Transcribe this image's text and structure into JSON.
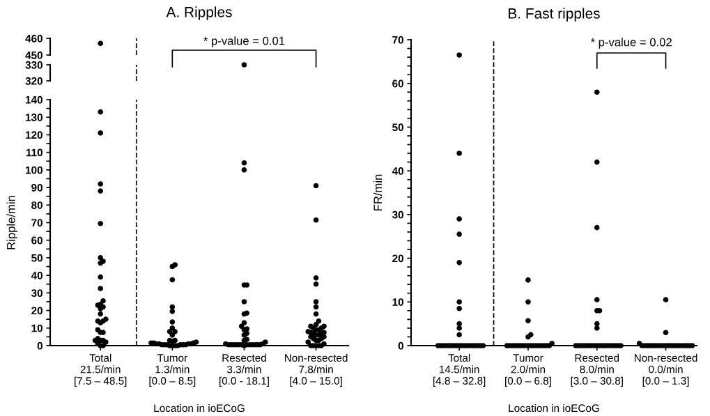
{
  "chart_data": [
    {
      "type": "scatter",
      "title": "A. Ripples",
      "categories": [
        "Total\n21.5/min\n[7.5 – 48.5]",
        "Tumor\n1.3/min\n[0.0 – 8.5]",
        "Resected\n3.3/min\n[0.0 - 18.1]",
        "Non-resected\n7.8/min\n[4.0 – 15.0]"
      ],
      "ylim": [
        450,
        460
      ],
      "yticks": [
        450,
        460
      ],
      "tick_labels": "y",
      "marker": "circle",
      "annotations": [
        "* p-value = 0.01"
      ],
      "series": [
        {
          "color": "#000000",
          "x": [
            "Total\n21.5/min\n[7.5 – 48.5]"
          ],
          "values": [
            457
          ]
        }
      ]
    },
    {
      "type": "scatter",
      "categories": [
        "Total\n21.5/min\n[7.5 – 48.5]",
        "Tumor\n1.3/min\n[0.0 – 8.5]",
        "Resected\n3.3/min\n[0.0 - 18.1]",
        "Non-resected\n7.8/min\n[4.0 – 15.0]"
      ],
      "ylim": [
        320,
        330
      ],
      "yticks": [
        320,
        330
      ],
      "tick_labels": "y",
      "marker": "circle",
      "series": [
        {
          "color": "#000000",
          "x": [
            "Resected\n3.3/min\n[0.0 - 18.1]"
          ],
          "values": [
            330
          ]
        }
      ]
    },
    {
      "type": "scatter",
      "ylabel": "Ripple/min",
      "xlabel": "Location in ioECoG",
      "categories": [
        "Total\n21.5/min\n[7.5 – 48.5]",
        "Tumor\n1.3/min\n[0.0 – 8.5]",
        "Resected\n3.3/min\n[0.0 - 18.1]",
        "Non-resected\n7.8/min\n[4.0 – 15.0]"
      ],
      "ylim": [
        0,
        140
      ],
      "yticks": [
        0,
        {
          "value": 5,
          "label": null
        },
        10,
        {
          "value": 15,
          "label": null
        },
        20,
        {
          "value": 25,
          "label": null
        },
        30,
        {
          "value": 35,
          "label": null
        },
        40,
        {
          "value": 45,
          "label": null
        },
        50,
        {
          "value": 55,
          "label": null
        },
        60,
        {
          "value": 65,
          "label": null
        },
        70,
        {
          "value": 75,
          "label": null
        },
        80,
        {
          "value": 85,
          "label": null
        },
        90,
        {
          "value": 95,
          "label": null
        },
        100,
        {
          "value": 105,
          "label": null
        },
        110,
        {
          "value": 115,
          "label": null
        },
        120,
        {
          "value": 125,
          "label": null
        },
        130,
        {
          "value": 135,
          "label": null
        },
        140
      ],
      "marker": "circle",
      "series": [
        {
          "color": "#000000",
          "x": [
            "Total\n21.5/min\n[7.5 – 48.5]",
            "Total\n21.5/min\n[7.5 – 48.5]",
            "Total\n21.5/min\n[7.5 – 48.5]",
            "Total\n21.5/min\n[7.5 – 48.5]",
            "Total\n21.5/min\n[7.5 – 48.5]",
            "Total\n21.5/min\n[7.5 – 48.5]",
            "Total\n21.5/min\n[7.5 – 48.5]",
            "Total\n21.5/min\n[7.5 – 48.5]",
            "Total\n21.5/min\n[7.5 – 48.5]",
            "Total\n21.5/min\n[7.5 – 48.5]",
            "Total\n21.5/min\n[7.5 – 48.5]",
            "Total\n21.5/min\n[7.5 – 48.5]",
            "Total\n21.5/min\n[7.5 – 48.5]",
            "Total\n21.5/min\n[7.5 – 48.5]",
            "Total\n21.5/min\n[7.5 – 48.5]",
            "Total\n21.5/min\n[7.5 – 48.5]",
            "Total\n21.5/min\n[7.5 – 48.5]",
            "Total\n21.5/min\n[7.5 – 48.5]",
            "Total\n21.5/min\n[7.5 – 48.5]",
            "Total\n21.5/min\n[7.5 – 48.5]",
            "Total\n21.5/min\n[7.5 – 48.5]",
            "Total\n21.5/min\n[7.5 – 48.5]",
            "Total\n21.5/min\n[7.5 – 48.5]",
            "Total\n21.5/min\n[7.5 – 48.5]",
            "Total\n21.5/min\n[7.5 – 48.5]",
            "Total\n21.5/min\n[7.5 – 48.5]",
            "Total\n21.5/min\n[7.5 – 48.5]",
            "Total\n21.5/min\n[7.5 – 48.5]",
            "Total\n21.5/min\n[7.5 – 48.5]",
            "Total\n21.5/min\n[7.5 – 48.5]",
            "Total\n21.5/min\n[7.5 – 48.5]",
            "Tumor\n1.3/min\n[0.0 – 8.5]",
            "Tumor\n1.3/min\n[0.0 – 8.5]",
            "Tumor\n1.3/min\n[0.0 – 8.5]",
            "Tumor\n1.3/min\n[0.0 – 8.5]",
            "Tumor\n1.3/min\n[0.0 – 8.5]",
            "Tumor\n1.3/min\n[0.0 – 8.5]",
            "Tumor\n1.3/min\n[0.0 – 8.5]",
            "Tumor\n1.3/min\n[0.0 – 8.5]",
            "Tumor\n1.3/min\n[0.0 – 8.5]",
            "Tumor\n1.3/min\n[0.0 – 8.5]",
            "Tumor\n1.3/min\n[0.0 – 8.5]",
            "Tumor\n1.3/min\n[0.0 – 8.5]",
            "Tumor\n1.3/min\n[0.0 – 8.5]",
            "Tumor\n1.3/min\n[0.0 – 8.5]",
            "Tumor\n1.3/min\n[0.0 – 8.5]",
            "Tumor\n1.3/min\n[0.0 – 8.5]",
            "Tumor\n1.3/min\n[0.0 – 8.5]",
            "Tumor\n1.3/min\n[0.0 – 8.5]",
            "Tumor\n1.3/min\n[0.0 – 8.5]",
            "Tumor\n1.3/min\n[0.0 – 8.5]",
            "Tumor\n1.3/min\n[0.0 – 8.5]",
            "Tumor\n1.3/min\n[0.0 – 8.5]",
            "Tumor\n1.3/min\n[0.0 – 8.5]",
            "Tumor\n1.3/min\n[0.0 – 8.5]",
            "Tumor\n1.3/min\n[0.0 – 8.5]",
            "Tumor\n1.3/min\n[0.0 – 8.5]",
            "Tumor\n1.3/min\n[0.0 – 8.5]",
            "Tumor\n1.3/min\n[0.0 – 8.5]",
            "Tumor\n1.3/min\n[0.0 – 8.5]",
            "Tumor\n1.3/min\n[0.0 – 8.5]",
            "Tumor\n1.3/min\n[0.0 – 8.5]",
            "Resected\n3.3/min\n[0.0 - 18.1]",
            "Resected\n3.3/min\n[0.0 - 18.1]",
            "Resected\n3.3/min\n[0.0 - 18.1]",
            "Resected\n3.3/min\n[0.0 - 18.1]",
            "Resected\n3.3/min\n[0.0 - 18.1]",
            "Resected\n3.3/min\n[0.0 - 18.1]",
            "Resected\n3.3/min\n[0.0 - 18.1]",
            "Resected\n3.3/min\n[0.0 - 18.1]",
            "Resected\n3.3/min\n[0.0 - 18.1]",
            "Resected\n3.3/min\n[0.0 - 18.1]",
            "Resected\n3.3/min\n[0.0 - 18.1]",
            "Resected\n3.3/min\n[0.0 - 18.1]",
            "Resected\n3.3/min\n[0.0 - 18.1]",
            "Resected\n3.3/min\n[0.0 - 18.1]",
            "Resected\n3.3/min\n[0.0 - 18.1]",
            "Resected\n3.3/min\n[0.0 - 18.1]",
            "Resected\n3.3/min\n[0.0 - 18.1]",
            "Resected\n3.3/min\n[0.0 - 18.1]",
            "Resected\n3.3/min\n[0.0 - 18.1]",
            "Resected\n3.3/min\n[0.0 - 18.1]",
            "Resected\n3.3/min\n[0.0 - 18.1]",
            "Resected\n3.3/min\n[0.0 - 18.1]",
            "Resected\n3.3/min\n[0.0 - 18.1]",
            "Resected\n3.3/min\n[0.0 - 18.1]",
            "Resected\n3.3/min\n[0.0 - 18.1]",
            "Resected\n3.3/min\n[0.0 - 18.1]",
            "Resected\n3.3/min\n[0.0 - 18.1]",
            "Resected\n3.3/min\n[0.0 - 18.1]",
            "Resected\n3.3/min\n[0.0 - 18.1]",
            "Resected\n3.3/min\n[0.0 - 18.1]",
            "Resected\n3.3/min\n[0.0 - 18.1]",
            "Non-resected\n7.8/min\n[4.0 – 15.0]",
            "Non-resected\n7.8/min\n[4.0 – 15.0]",
            "Non-resected\n7.8/min\n[4.0 – 15.0]",
            "Non-resected\n7.8/min\n[4.0 – 15.0]",
            "Non-resected\n7.8/min\n[4.0 – 15.0]",
            "Non-resected\n7.8/min\n[4.0 – 15.0]",
            "Non-resected\n7.8/min\n[4.0 – 15.0]",
            "Non-resected\n7.8/min\n[4.0 – 15.0]",
            "Non-resected\n7.8/min\n[4.0 – 15.0]",
            "Non-resected\n7.8/min\n[4.0 – 15.0]",
            "Non-resected\n7.8/min\n[4.0 – 15.0]",
            "Non-resected\n7.8/min\n[4.0 – 15.0]",
            "Non-resected\n7.8/min\n[4.0 – 15.0]",
            "Non-resected\n7.8/min\n[4.0 – 15.0]",
            "Non-resected\n7.8/min\n[4.0 – 15.0]",
            "Non-resected\n7.8/min\n[4.0 – 15.0]",
            "Non-resected\n7.8/min\n[4.0 – 15.0]",
            "Non-resected\n7.8/min\n[4.0 – 15.0]",
            "Non-resected\n7.8/min\n[4.0 – 15.0]",
            "Non-resected\n7.8/min\n[4.0 – 15.0]",
            "Non-resected\n7.8/min\n[4.0 – 15.0]",
            "Non-resected\n7.8/min\n[4.0 – 15.0]",
            "Non-resected\n7.8/min\n[4.0 – 15.0]",
            "Non-resected\n7.8/min\n[4.0 – 15.0]",
            "Non-resected\n7.8/min\n[4.0 – 15.0]",
            "Non-resected\n7.8/min\n[4.0 – 15.0]",
            "Non-resected\n7.8/min\n[4.0 – 15.0]",
            "Non-resected\n7.8/min\n[4.0 – 15.0]",
            "Non-resected\n7.8/min\n[4.0 – 15.0]",
            "Non-resected\n7.8/min\n[4.0 – 15.0]",
            "Non-resected\n7.8/min\n[4.0 – 15.0]",
            "Non-resected\n7.8/min\n[4.0 – 15.0]",
            "Non-resected\n7.8/min\n[4.0 – 15.0]",
            "Non-resected\n7.8/min\n[4.0 – 15.0]",
            "Non-resected\n7.8/min\n[4.0 – 15.0]"
          ],
          "values": [
            133,
            121,
            92,
            88,
            69.5,
            50,
            48,
            47,
            39,
            32.5,
            25.5,
            23.5,
            23,
            22,
            21,
            18,
            15,
            14,
            14,
            13,
            9,
            7.5,
            7.5,
            4,
            3,
            3,
            3,
            2,
            1,
            0,
            0,
            46,
            45,
            37.5,
            22,
            19.5,
            13.5,
            10,
            8,
            8,
            6,
            3,
            3,
            2.5,
            2,
            1.5,
            1.5,
            1.5,
            1,
            1,
            1,
            1,
            0.5,
            0.5,
            0.5,
            0.5,
            0.5,
            0.5,
            0,
            0,
            0,
            0,
            104,
            100,
            34.5,
            34.5,
            25,
            18.5,
            18,
            13,
            11,
            9.5,
            9,
            7,
            6,
            3.5,
            3,
            2,
            1,
            1,
            0.5,
            0.5,
            0.5,
            0.5,
            0.5,
            0.5,
            0.5,
            0.5,
            0.5,
            0.5,
            0.5,
            0.5,
            0,
            91,
            71.5,
            38.5,
            35,
            25,
            22,
            18,
            14,
            12,
            11,
            11,
            10,
            10,
            9,
            9,
            8,
            7.5,
            7.5,
            7,
            7,
            6,
            6,
            5,
            5,
            4,
            4,
            3,
            3,
            2,
            1,
            0,
            0,
            0,
            0,
            0
          ]
        }
      ]
    },
    {
      "type": "scatter",
      "title": "B. Fast ripples",
      "ylabel": "FR/min",
      "xlabel": "Location in ioECoG",
      "categories": [
        "Total\n14.5/min\n[4.8 – 32.8]",
        "Tumor\n2.0/min\n[0.0 – 6.8]",
        "Resected\n8.0/min\n[3.0 – 30.8]",
        "Non-resected\n0.0/min\n[0.0 – 1.3]"
      ],
      "ylim": [
        0,
        70
      ],
      "yticks": [
        0,
        {
          "value": 2,
          "label": null
        },
        {
          "value": 4,
          "label": null
        },
        {
          "value": 6,
          "label": null
        },
        {
          "value": 8,
          "label": null
        },
        10,
        {
          "value": 12,
          "label": null
        },
        {
          "value": 14,
          "label": null
        },
        {
          "value": 16,
          "label": null
        },
        {
          "value": 18,
          "label": null
        },
        20,
        {
          "value": 22,
          "label": null
        },
        {
          "value": 24,
          "label": null
        },
        {
          "value": 26,
          "label": null
        },
        {
          "value": 28,
          "label": null
        },
        30,
        {
          "value": 32,
          "label": null
        },
        {
          "value": 34,
          "label": null
        },
        {
          "value": 36,
          "label": null
        },
        {
          "value": 38,
          "label": null
        },
        40,
        {
          "value": 42,
          "label": null
        },
        {
          "value": 44,
          "label": null
        },
        {
          "value": 46,
          "label": null
        },
        {
          "value": 48,
          "label": null
        },
        50,
        {
          "value": 52,
          "label": null
        },
        {
          "value": 54,
          "label": null
        },
        {
          "value": 56,
          "label": null
        },
        {
          "value": 58,
          "label": null
        },
        60,
        {
          "value": 62,
          "label": null
        },
        {
          "value": 64,
          "label": null
        },
        {
          "value": 66,
          "label": null
        },
        {
          "value": 68,
          "label": null
        },
        70
      ],
      "marker": "circle",
      "annotations": [
        "* p-value = 0.02"
      ],
      "series": [
        {
          "color": "#000000",
          "x": [
            "Total\n14.5/min\n[4.8 – 32.8]",
            "Total\n14.5/min\n[4.8 – 32.8]",
            "Total\n14.5/min\n[4.8 – 32.8]",
            "Total\n14.5/min\n[4.8 – 32.8]",
            "Total\n14.5/min\n[4.8 – 32.8]",
            "Total\n14.5/min\n[4.8 – 32.8]",
            "Total\n14.5/min\n[4.8 – 32.8]",
            "Total\n14.5/min\n[4.8 – 32.8]",
            "Total\n14.5/min\n[4.8 – 32.8]",
            "Total\n14.5/min\n[4.8 – 32.8]",
            "Total\n14.5/min\n[4.8 – 32.8]",
            "Total\n14.5/min\n[4.8 – 32.8]",
            "Total\n14.5/min\n[4.8 – 32.8]",
            "Total\n14.5/min\n[4.8 – 32.8]",
            "Total\n14.5/min\n[4.8 – 32.8]",
            "Total\n14.5/min\n[4.8 – 32.8]",
            "Total\n14.5/min\n[4.8 – 32.8]",
            "Total\n14.5/min\n[4.8 – 32.8]",
            "Total\n14.5/min\n[4.8 – 32.8]",
            "Total\n14.5/min\n[4.8 – 32.8]",
            "Total\n14.5/min\n[4.8 – 32.8]",
            "Total\n14.5/min\n[4.8 – 32.8]",
            "Total\n14.5/min\n[4.8 – 32.8]",
            "Total\n14.5/min\n[4.8 – 32.8]",
            "Total\n14.5/min\n[4.8 – 32.8]",
            "Total\n14.5/min\n[4.8 – 32.8]",
            "Total\n14.5/min\n[4.8 – 32.8]",
            "Total\n14.5/min\n[4.8 – 32.8]",
            "Tumor\n2.0/min\n[0.0 – 6.8]",
            "Tumor\n2.0/min\n[0.0 – 6.8]",
            "Tumor\n2.0/min\n[0.0 – 6.8]",
            "Tumor\n2.0/min\n[0.0 – 6.8]",
            "Tumor\n2.0/min\n[0.0 – 6.8]",
            "Tumor\n2.0/min\n[0.0 – 6.8]",
            "Tumor\n2.0/min\n[0.0 – 6.8]",
            "Tumor\n2.0/min\n[0.0 – 6.8]",
            "Tumor\n2.0/min\n[0.0 – 6.8]",
            "Tumor\n2.0/min\n[0.0 – 6.8]",
            "Tumor\n2.0/min\n[0.0 – 6.8]",
            "Tumor\n2.0/min\n[0.0 – 6.8]",
            "Tumor\n2.0/min\n[0.0 – 6.8]",
            "Tumor\n2.0/min\n[0.0 – 6.8]",
            "Tumor\n2.0/min\n[0.0 – 6.8]",
            "Tumor\n2.0/min\n[0.0 – 6.8]",
            "Tumor\n2.0/min\n[0.0 – 6.8]",
            "Tumor\n2.0/min\n[0.0 – 6.8]",
            "Tumor\n2.0/min\n[0.0 – 6.8]",
            "Tumor\n2.0/min\n[0.0 – 6.8]",
            "Tumor\n2.0/min\n[0.0 – 6.8]",
            "Tumor\n2.0/min\n[0.0 – 6.8]",
            "Tumor\n2.0/min\n[0.0 – 6.8]",
            "Resected\n8.0/min\n[3.0 – 30.8]",
            "Resected\n8.0/min\n[3.0 – 30.8]",
            "Resected\n8.0/min\n[3.0 – 30.8]",
            "Resected\n8.0/min\n[3.0 – 30.8]",
            "Resected\n8.0/min\n[3.0 – 30.8]",
            "Resected\n8.0/min\n[3.0 – 30.8]",
            "Resected\n8.0/min\n[3.0 – 30.8]",
            "Resected\n8.0/min\n[3.0 – 30.8]",
            "Resected\n8.0/min\n[3.0 – 30.8]",
            "Resected\n8.0/min\n[3.0 – 30.8]",
            "Resected\n8.0/min\n[3.0 – 30.8]",
            "Resected\n8.0/min\n[3.0 – 30.8]",
            "Resected\n8.0/min\n[3.0 – 30.8]",
            "Resected\n8.0/min\n[3.0 – 30.8]",
            "Resected\n8.0/min\n[3.0 – 30.8]",
            "Resected\n8.0/min\n[3.0 – 30.8]",
            "Resected\n8.0/min\n[3.0 – 30.8]",
            "Resected\n8.0/min\n[3.0 – 30.8]",
            "Resected\n8.0/min\n[3.0 – 30.8]",
            "Resected\n8.0/min\n[3.0 – 30.8]",
            "Resected\n8.0/min\n[3.0 – 30.8]",
            "Resected\n8.0/min\n[3.0 – 30.8]",
            "Resected\n8.0/min\n[3.0 – 30.8]",
            "Resected\n8.0/min\n[3.0 – 30.8]",
            "Resected\n8.0/min\n[3.0 – 30.8]",
            "Resected\n8.0/min\n[3.0 – 30.8]",
            "Non-resected\n0.0/min\n[0.0 – 1.3]",
            "Non-resected\n0.0/min\n[0.0 – 1.3]",
            "Non-resected\n0.0/min\n[0.0 – 1.3]",
            "Non-resected\n0.0/min\n[0.0 – 1.3]",
            "Non-resected\n0.0/min\n[0.0 – 1.3]",
            "Non-resected\n0.0/min\n[0.0 – 1.3]",
            "Non-resected\n0.0/min\n[0.0 – 1.3]",
            "Non-resected\n0.0/min\n[0.0 – 1.3]",
            "Non-resected\n0.0/min\n[0.0 – 1.3]",
            "Non-resected\n0.0/min\n[0.0 – 1.3]",
            "Non-resected\n0.0/min\n[0.0 – 1.3]",
            "Non-resected\n0.0/min\n[0.0 – 1.3]",
            "Non-resected\n0.0/min\n[0.0 – 1.3]",
            "Non-resected\n0.0/min\n[0.0 – 1.3]",
            "Non-resected\n0.0/min\n[0.0 – 1.3]",
            "Non-resected\n0.0/min\n[0.0 – 1.3]",
            "Non-resected\n0.0/min\n[0.0 – 1.3]",
            "Non-resected\n0.0/min\n[0.0 – 1.3]",
            "Non-resected\n0.0/min\n[0.0 – 1.3]",
            "Non-resected\n0.0/min\n[0.0 – 1.3]",
            "Non-resected\n0.0/min\n[0.0 – 1.3]",
            "Non-resected\n0.0/min\n[0.0 – 1.3]",
            "Non-resected\n0.0/min\n[0.0 – 1.3]"
          ],
          "values": [
            66.5,
            44,
            29,
            25.5,
            19,
            10,
            8.5,
            5,
            4,
            2.5,
            0,
            0,
            0,
            0,
            0,
            0,
            0,
            0,
            0,
            0,
            0,
            0,
            0,
            0,
            0,
            0,
            0,
            0,
            15,
            10,
            5.7,
            2.5,
            2,
            0.5,
            0,
            0,
            0,
            0,
            0,
            0,
            0,
            0,
            0,
            0,
            0,
            0,
            0,
            0,
            0,
            0,
            0,
            58,
            42,
            27,
            10.5,
            8,
            8,
            5,
            4,
            0,
            0,
            0,
            0,
            0,
            0,
            0,
            0,
            0,
            0,
            0,
            0,
            0,
            0,
            0,
            0,
            0,
            0,
            10.5,
            3,
            0.5,
            0,
            0,
            0,
            0,
            0,
            0,
            0,
            0,
            0,
            0,
            0,
            0,
            0,
            0,
            0,
            0,
            0,
            0,
            0,
            0
          ]
        }
      ]
    }
  ]
}
